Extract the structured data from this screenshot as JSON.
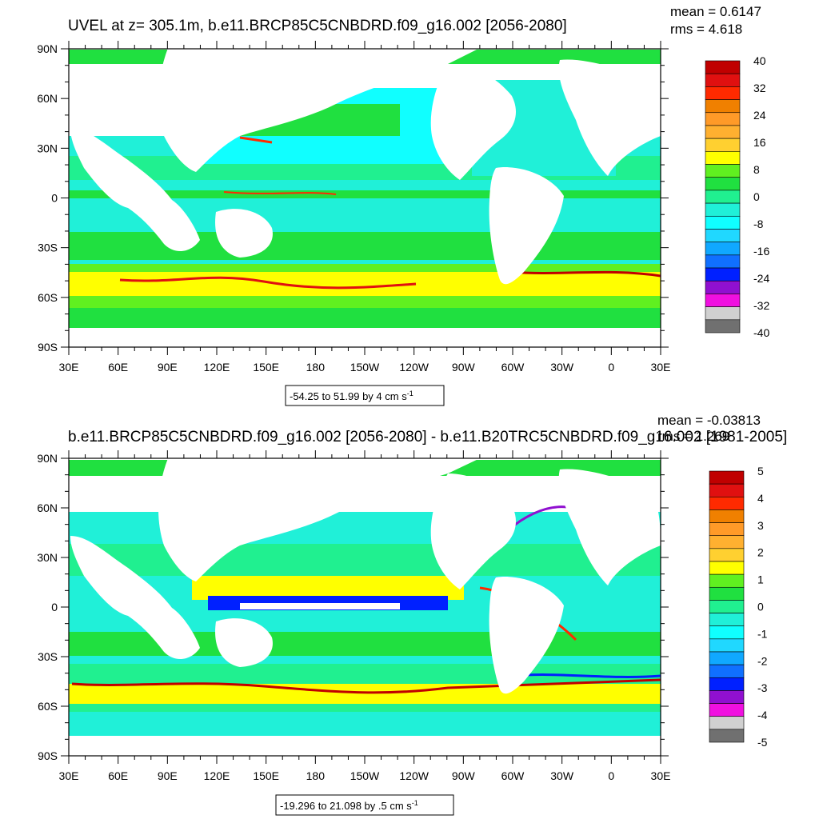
{
  "chart_data": [
    {
      "type": "heatmap",
      "title": "UVEL at z= 305.1m, b.e11.BRCP85C5CNBDRD.f09_g16.002 [2056-2080]",
      "stats": {
        "mean": "mean = 0.6147",
        "rms": "rms = 4.618"
      },
      "x_ticks": [
        "30E",
        "60E",
        "90E",
        "120E",
        "150E",
        "180",
        "150W",
        "120W",
        "90W",
        "60W",
        "30W",
        "0",
        "30E"
      ],
      "y_ticks": [
        "90N",
        "60N",
        "30N",
        "0",
        "30S",
        "60S",
        "90S"
      ],
      "xlim": [
        30,
        390
      ],
      "ylim": [
        -90,
        90
      ],
      "colorbar": {
        "labels": [
          "40",
          "32",
          "24",
          "16",
          "8",
          "0",
          "-8",
          "-16",
          "-24",
          "-32",
          "-40"
        ],
        "colors": [
          "#c00000",
          "#e01010",
          "#ff2a00",
          "#f08000",
          "#ff9a28",
          "#ffb030",
          "#ffd030",
          "#ffff00",
          "#60f020",
          "#20e040",
          "#20f090",
          "#20f0d8",
          "#10ffff",
          "#20d8ff",
          "#10a8ff",
          "#1070ff",
          "#0020ff",
          "#9010d0",
          "#f010e0",
          "#d0d0d0",
          "#707070"
        ]
      },
      "range_text": "-54.25 to 51.99 by 4 cm s",
      "range_sup": "-1"
    },
    {
      "type": "heatmap",
      "title": "b.e11.BRCP85C5CNBDRD.f09_g16.002 [2056-2080] - b.e11.B20TRC5CNBDRD.f09_g16.002 [1981-2005]",
      "stats": {
        "mean": "mean = -0.03813",
        "rms": "rms = 1.269"
      },
      "x_ticks": [
        "30E",
        "60E",
        "90E",
        "120E",
        "150E",
        "180",
        "150W",
        "120W",
        "90W",
        "60W",
        "30W",
        "0",
        "30E"
      ],
      "y_ticks": [
        "90N",
        "60N",
        "30N",
        "0",
        "30S",
        "60S",
        "90S"
      ],
      "xlim": [
        30,
        390
      ],
      "ylim": [
        -90,
        90
      ],
      "colorbar": {
        "labels": [
          "5",
          "4",
          "3",
          "2",
          "1",
          "0",
          "-1",
          "-2",
          "-3",
          "-4",
          "-5"
        ],
        "colors": [
          "#c00000",
          "#e01010",
          "#ff2a00",
          "#f08000",
          "#ff9a28",
          "#ffb030",
          "#ffd030",
          "#ffff00",
          "#60f020",
          "#20e040",
          "#20f090",
          "#20f0d8",
          "#10ffff",
          "#20d8ff",
          "#10a8ff",
          "#1070ff",
          "#0020ff",
          "#9010d0",
          "#f010e0",
          "#d0d0d0",
          "#707070"
        ]
      },
      "range_text": "-19.296 to 21.098 by .5 cm s",
      "range_sup": "-1"
    }
  ]
}
